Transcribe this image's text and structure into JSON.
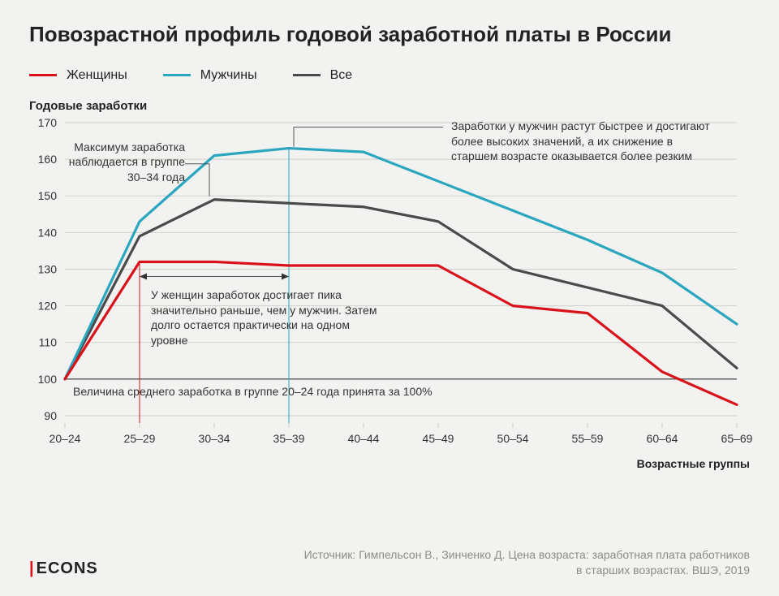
{
  "title": "Повозрастной профиль годовой заработной платы в России",
  "legend": {
    "women": {
      "label": "Женщины",
      "color": "#d9121a"
    },
    "men": {
      "label": "Мужчины",
      "color": "#2aa6bf"
    },
    "all": {
      "label": "Все",
      "color": "#4a4a4a"
    }
  },
  "y_axis_title": "Годовые заработки",
  "x_axis_title": "Возрастные группы",
  "chart": {
    "type": "line",
    "background_color": "#f2f2f0",
    "grid_color": "#cfcfcc",
    "baseline_color": "#555555",
    "categories": [
      "20–24",
      "25–29",
      "30–34",
      "35–39",
      "40–44",
      "45–49",
      "50–54",
      "55–59",
      "60–64",
      "65–69"
    ],
    "ylim": [
      88,
      170
    ],
    "ytick_step": 10,
    "yticks": [
      90,
      100,
      110,
      120,
      130,
      140,
      150,
      160,
      170
    ],
    "baseline_value": 100,
    "line_width": 3.2,
    "series": {
      "men": {
        "color": "#2aa6bf",
        "values": [
          100,
          143,
          161,
          163,
          162,
          154,
          146,
          138,
          129,
          115
        ]
      },
      "all": {
        "color": "#4a4a4a",
        "values": [
          100,
          139,
          149,
          148,
          147,
          143,
          130,
          125,
          120,
          103
        ]
      },
      "women": {
        "color": "#d9121a",
        "values": [
          100,
          132,
          132,
          131,
          131,
          131,
          120,
          118,
          102,
          93
        ]
      }
    },
    "callouts": {
      "women_arrow": {
        "from_category": "25–29",
        "to_category": "35–39",
        "y_value": 128
      },
      "women_vline": {
        "category": "25–29",
        "from_y": 88,
        "to_y": 132
      },
      "men_vline": {
        "category": "35–39",
        "from_y": 88,
        "to_y": 163
      },
      "max_lead": {
        "category": "30–34"
      }
    }
  },
  "annotations": {
    "max_group": "Максимум заработка наблюдается в группе 30–34 года",
    "men_note": "Заработки у мужчин растут быстрее и достигают более высоких значений, а их снижение в старшем возрасте оказывается более резким",
    "women_note": "У женщин заработок достигает пика значительно раньше, чем у мужчин. Затем долго остается практически на одном уровне",
    "baseline": "Величина среднего заработка в группе 20–24 года принята за 100%"
  },
  "logo": {
    "prefix_bar": "|",
    "text": "ECONS",
    "bar_color": "#d9121a"
  },
  "source": "Источник: Гимпельсон В., Зинченко Д. Цена возраста: заработная плата работников в старших возрастах. ВШЭ, 2019"
}
